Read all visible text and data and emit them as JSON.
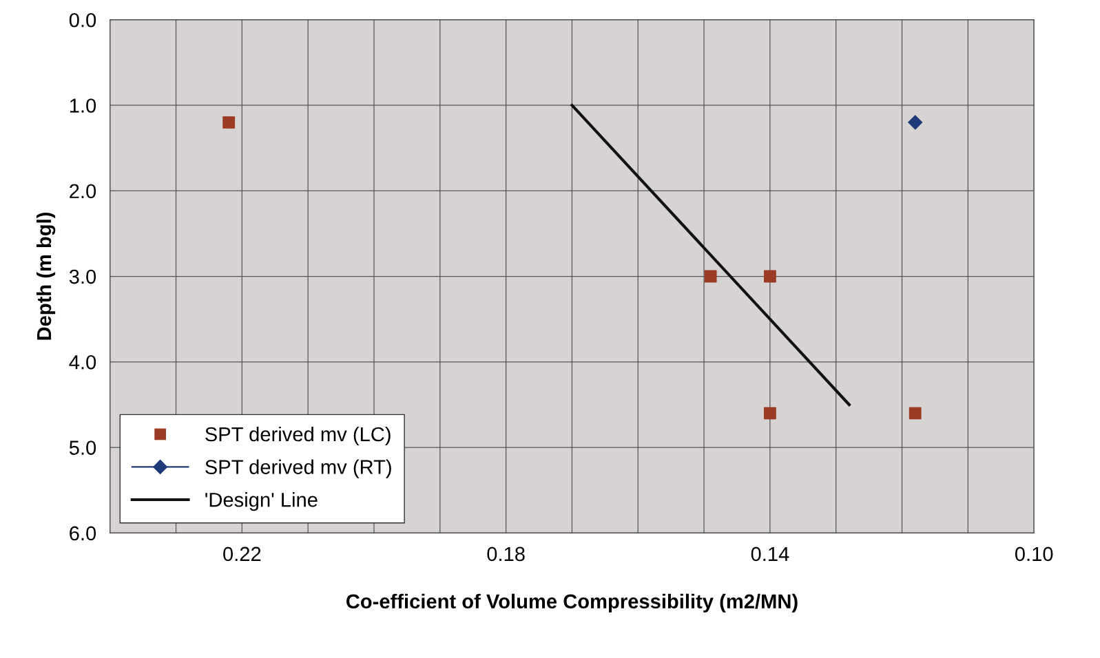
{
  "chart_data": {
    "type": "scatter",
    "xlabel": "Co-efficient of Volume Compressibility (m2/MN)",
    "ylabel": "Depth (m bgl)",
    "xlim": [
      0.24,
      0.1
    ],
    "ylim": [
      6.0,
      0.0
    ],
    "xticks": [
      {
        "value": 0.24,
        "label": null
      },
      {
        "value": 0.23,
        "label": null
      },
      {
        "value": 0.22,
        "label": "0.22"
      },
      {
        "value": 0.21,
        "label": null
      },
      {
        "value": 0.2,
        "label": null
      },
      {
        "value": 0.19,
        "label": null
      },
      {
        "value": 0.18,
        "label": "0.18"
      },
      {
        "value": 0.17,
        "label": null
      },
      {
        "value": 0.16,
        "label": null
      },
      {
        "value": 0.15,
        "label": null
      },
      {
        "value": 0.14,
        "label": "0.14"
      },
      {
        "value": 0.13,
        "label": null
      },
      {
        "value": 0.12,
        "label": null
      },
      {
        "value": 0.11,
        "label": null
      },
      {
        "value": 0.1,
        "label": "0.10"
      }
    ],
    "yticks": [
      {
        "value": 0,
        "label": "0.0"
      },
      {
        "value": 1,
        "label": "1.0"
      },
      {
        "value": 2,
        "label": "2.0"
      },
      {
        "value": 3,
        "label": "3.0"
      },
      {
        "value": 4,
        "label": "4.0"
      },
      {
        "value": 5,
        "label": "5.0"
      },
      {
        "value": 6,
        "label": "6.0"
      }
    ],
    "grid": true,
    "legend": "bottom left",
    "series": [
      {
        "name": "SPT derived mv (LC)",
        "marker": "square",
        "color": "#9c3b24",
        "x": [
          0.222,
          0.149,
          0.14,
          0.14,
          0.118
        ],
        "values": [
          1.2,
          3.0,
          3.0,
          4.6,
          4.6
        ]
      },
      {
        "name": "SPT derived mv (RT)",
        "type": "line",
        "marker": "diamond",
        "color": "#1f3a7a",
        "x": [
          0.118
        ],
        "values": [
          1.2
        ]
      },
      {
        "name": "'Design' Line",
        "type": "line",
        "marker": "none",
        "color": "#111111",
        "x": [
          0.17,
          0.128
        ],
        "values": [
          1.0,
          4.5
        ]
      }
    ]
  }
}
